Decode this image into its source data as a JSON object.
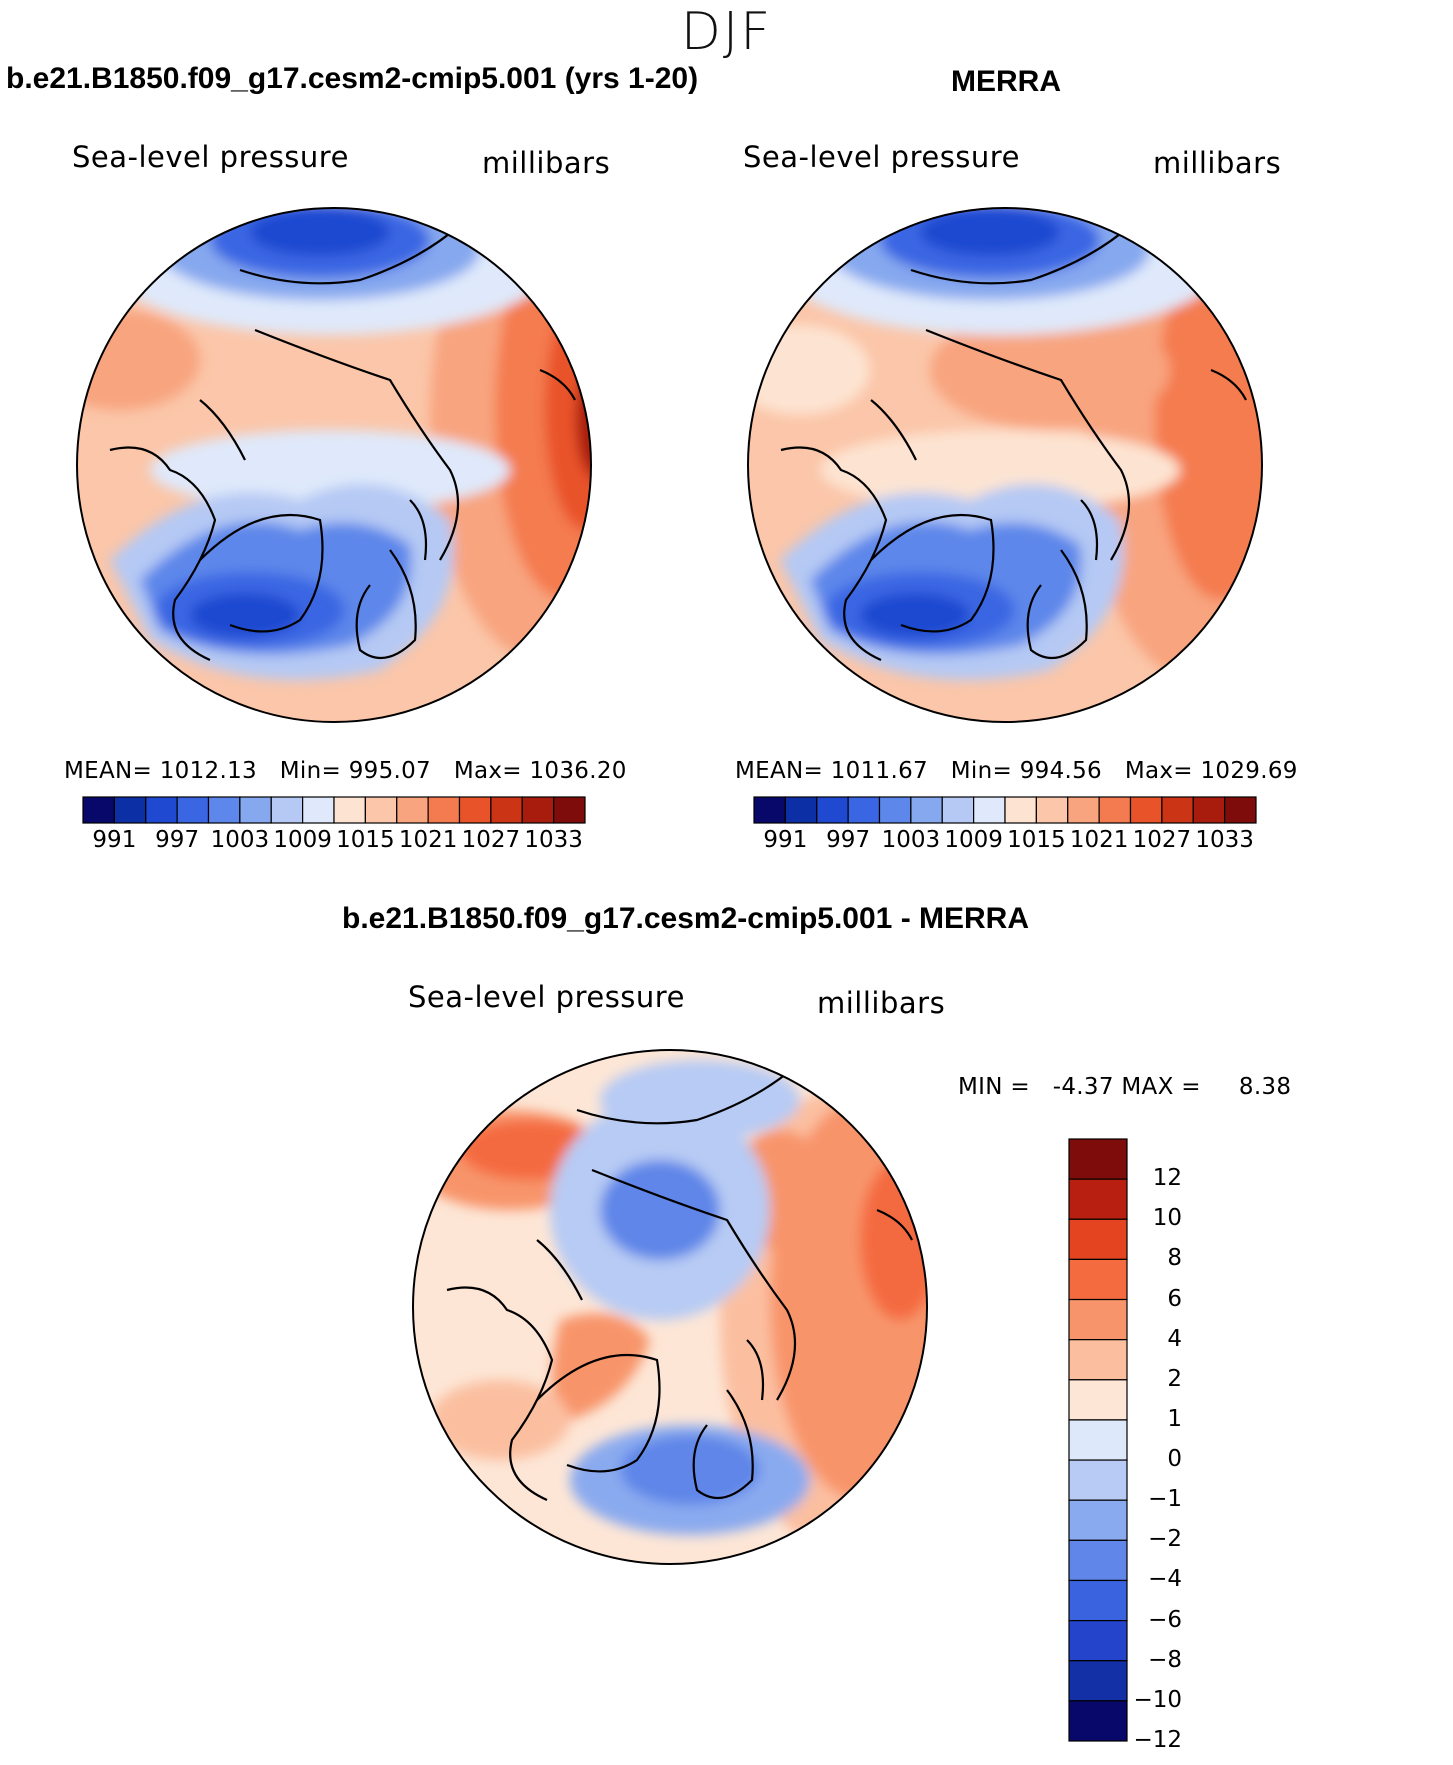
{
  "figure": {
    "season": "DJF"
  },
  "panels": [
    {
      "id": "model",
      "title": "b.e21.B1850.f09_g17.cesm2-cmip5.001 (yrs 1-20)",
      "variable": "Sea-level pressure",
      "units": "millibars",
      "stats": {
        "mean_label": "MEAN=",
        "mean": "1012.13",
        "min_label": "Min=",
        "min": "995.07",
        "max_label": "Max=",
        "max": "1036.20"
      }
    },
    {
      "id": "obs",
      "title": "MERRA",
      "variable": "Sea-level pressure",
      "units": "millibars",
      "stats": {
        "mean_label": "MEAN=",
        "mean": "1011.67",
        "min_label": "Min=",
        "min": "994.56",
        "max_label": "Max=",
        "max": "1029.69"
      }
    },
    {
      "id": "diff",
      "title": "b.e21.B1850.f09_g17.cesm2-cmip5.001 - MERRA",
      "variable": "Sea-level pressure",
      "units": "millibars",
      "stats": {
        "min_label": "MIN =",
        "min": "-4.37",
        "max_label": "MAX =",
        "max": "8.38"
      }
    }
  ],
  "colorbar_abs": {
    "tick_labels": [
      "991",
      "997",
      "1003",
      "1009",
      "1015",
      "1021",
      "1027",
      "1033"
    ],
    "colors": [
      "#08086b",
      "#0d2fa6",
      "#1f49d0",
      "#3a66e3",
      "#5d87ea",
      "#86a8ef",
      "#b5c9f4",
      "#dfe9fb",
      "#fde4d2",
      "#fbc6a9",
      "#f8a47f",
      "#f47b50",
      "#e9532a",
      "#cc3416",
      "#a81c0e",
      "#7d0c0a"
    ]
  },
  "colorbar_diff": {
    "tick_labels": [
      "12",
      "10",
      "8",
      "6",
      "4",
      "2",
      "1",
      "0",
      "−1",
      "−2",
      "−4",
      "−6",
      "−8",
      "−10",
      "−12"
    ],
    "colors": [
      "#7d0c0a",
      "#b81f10",
      "#e44420",
      "#f46b3f",
      "#f8946b",
      "#fbbfa0",
      "#fde6d6",
      "#dde9fb",
      "#b7cbf4",
      "#8aaaef",
      "#5f86e8",
      "#3a63df",
      "#2445cb",
      "#1430a6",
      "#08086b"
    ]
  }
}
